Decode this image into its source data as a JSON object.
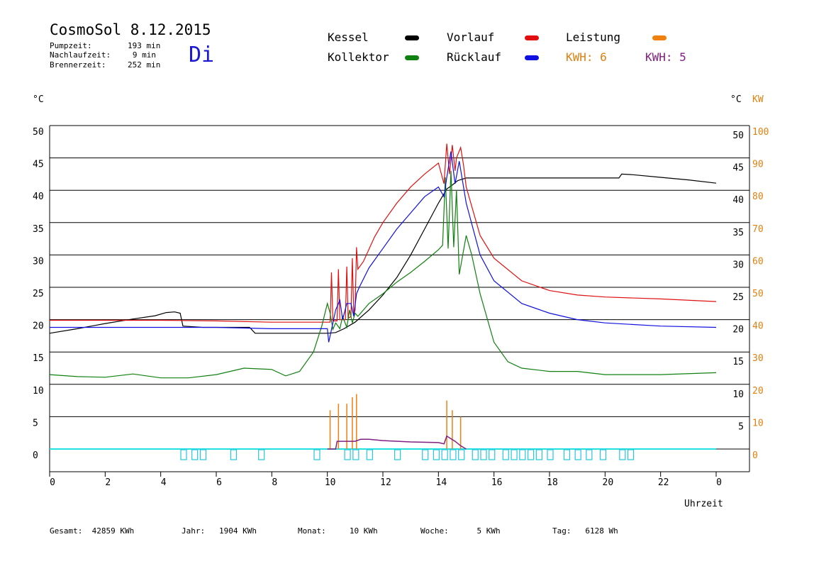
{
  "header": {
    "title": "CosmoSol 8.12.2015",
    "day": "Di",
    "stats": [
      {
        "label": "Pumpzeit:",
        "value": "193 min"
      },
      {
        "label": "Nachlaufzeit:",
        "value": "9 min"
      },
      {
        "label": "Brennerzeit:",
        "value": "252 min"
      }
    ]
  },
  "legend": {
    "kessel": {
      "label": "Kessel",
      "color": "#000000"
    },
    "vorlauf": {
      "label": "Vorlauf",
      "color": "#e01010"
    },
    "leistung": {
      "label": "Leistung",
      "color": "#f08010"
    },
    "kollektor": {
      "label": "Kollektor",
      "color": "#108010"
    },
    "ruecklauf": {
      "label": "Rücklauf",
      "color": "#1010e0"
    },
    "kwh_orange": {
      "label": "KWH: 6",
      "color": "#e08010"
    },
    "kwh_purple": {
      "label": "KWH: 5",
      "color": "#802080"
    }
  },
  "footer": {
    "gesamt": "Gesamt:  42859 KWh",
    "jahr": "Jahr:   1904 KWh",
    "monat": "Monat:     10 KWh",
    "woche": "Woche:      5 KWh",
    "tag": "Tag:   6128 Wh"
  },
  "chart_data": {
    "type": "line",
    "xlabel": "Uhrzeit",
    "ylabel_left": "°C",
    "ylabel_right": "°C",
    "ylabel_right2": "KW",
    "xlim": [
      0,
      24
    ],
    "ylim": [
      -3.5,
      55
    ],
    "x_ticks": [
      "0",
      "2",
      "4",
      "6",
      "8",
      "10",
      "12",
      "14",
      "16",
      "18",
      "20",
      "22",
      "0"
    ],
    "y_ticks_left": [
      "0",
      "5",
      "10",
      "15",
      "20",
      "25",
      "30",
      "35",
      "40",
      "45",
      "50"
    ],
    "y_ticks_right": [
      "5",
      "10",
      "15",
      "20",
      "25",
      "30",
      "35",
      "40",
      "45",
      "50"
    ],
    "y_ticks_kw": [
      "0",
      "10",
      "20",
      "30",
      "40",
      "50",
      "60",
      "70",
      "80",
      "90",
      "100"
    ],
    "kw_scale": 2,
    "series": [
      {
        "name": "Kessel",
        "color": "#000000",
        "points": [
          [
            0,
            17.9
          ],
          [
            1,
            18.6
          ],
          [
            2,
            19.4
          ],
          [
            3,
            20.1
          ],
          [
            3.8,
            20.6
          ],
          [
            4.2,
            21.1
          ],
          [
            4.5,
            21.2
          ],
          [
            4.7,
            21.0
          ],
          [
            4.8,
            19.0
          ],
          [
            5.5,
            18.8
          ],
          [
            7.2,
            18.8
          ],
          [
            7.4,
            17.9
          ],
          [
            9,
            17.9
          ],
          [
            10,
            17.9
          ],
          [
            10.3,
            18.0
          ],
          [
            10.6,
            18.6
          ],
          [
            11.0,
            19.6
          ],
          [
            11.5,
            21.5
          ],
          [
            12,
            23.8
          ],
          [
            12.5,
            26.5
          ],
          [
            13,
            30.0
          ],
          [
            13.5,
            34.0
          ],
          [
            14,
            38.0
          ],
          [
            14.3,
            40.2
          ],
          [
            14.5,
            40.8
          ],
          [
            14.7,
            41.5
          ],
          [
            15,
            41.9
          ],
          [
            17,
            41.9
          ],
          [
            20.5,
            41.9
          ],
          [
            20.6,
            42.5
          ],
          [
            21,
            42.4
          ],
          [
            22,
            42.0
          ],
          [
            23,
            41.6
          ],
          [
            24,
            41.1
          ]
        ]
      },
      {
        "name": "Vorlauf",
        "color": "#e01010",
        "points": [
          [
            0,
            19.9
          ],
          [
            2,
            19.9
          ],
          [
            4,
            19.9
          ],
          [
            6,
            19.8
          ],
          [
            8,
            19.6
          ],
          [
            10,
            19.6
          ],
          [
            10.1,
            19.6
          ],
          [
            10.15,
            27.3
          ],
          [
            10.2,
            19.8
          ],
          [
            10.35,
            19.8
          ],
          [
            10.4,
            27.8
          ],
          [
            10.45,
            20.0
          ],
          [
            10.65,
            20.0
          ],
          [
            10.7,
            28.2
          ],
          [
            10.75,
            20.2
          ],
          [
            10.85,
            20.5
          ],
          [
            10.9,
            29.5
          ],
          [
            10.95,
            20.8
          ],
          [
            11.0,
            21.5
          ],
          [
            11.05,
            31.2
          ],
          [
            11.1,
            27.8
          ],
          [
            11.3,
            29.0
          ],
          [
            11.7,
            32.8
          ],
          [
            12,
            35.0
          ],
          [
            12.5,
            38.0
          ],
          [
            13,
            40.5
          ],
          [
            13.5,
            42.5
          ],
          [
            14,
            44.2
          ],
          [
            14.2,
            41.0
          ],
          [
            14.3,
            47.2
          ],
          [
            14.4,
            42.5
          ],
          [
            14.5,
            47.0
          ],
          [
            14.6,
            43.0
          ],
          [
            14.65,
            45.0
          ],
          [
            14.8,
            46.6
          ],
          [
            14.9,
            44.0
          ],
          [
            15,
            40.5
          ],
          [
            15.5,
            33.0
          ],
          [
            16,
            29.5
          ],
          [
            17,
            26.0
          ],
          [
            18,
            24.5
          ],
          [
            19,
            23.8
          ],
          [
            20,
            23.5
          ],
          [
            22,
            23.2
          ],
          [
            24,
            22.8
          ]
        ]
      },
      {
        "name": "Kollektor",
        "color": "#108010",
        "points": [
          [
            0,
            11.5
          ],
          [
            1,
            11.2
          ],
          [
            2,
            11.1
          ],
          [
            3,
            11.6
          ],
          [
            4,
            11.0
          ],
          [
            5,
            11.0
          ],
          [
            6,
            11.5
          ],
          [
            7,
            12.5
          ],
          [
            8,
            12.3
          ],
          [
            8.5,
            11.3
          ],
          [
            9,
            12.0
          ],
          [
            9.5,
            15.0
          ],
          [
            9.8,
            19.0
          ],
          [
            10.0,
            22.5
          ],
          [
            10.1,
            21.0
          ],
          [
            10.2,
            18.5
          ],
          [
            10.3,
            19.5
          ],
          [
            10.45,
            18.6
          ],
          [
            10.55,
            20.5
          ],
          [
            10.7,
            18.8
          ],
          [
            10.8,
            21.5
          ],
          [
            10.9,
            19.5
          ],
          [
            11.0,
            21.0
          ],
          [
            11.1,
            20.5
          ],
          [
            11.3,
            21.5
          ],
          [
            11.5,
            22.5
          ],
          [
            12,
            24.0
          ],
          [
            12.5,
            25.8
          ],
          [
            13,
            27.3
          ],
          [
            13.5,
            29.0
          ],
          [
            14.0,
            30.8
          ],
          [
            14.15,
            31.5
          ],
          [
            14.25,
            42.0
          ],
          [
            14.35,
            31.0
          ],
          [
            14.45,
            43.0
          ],
          [
            14.55,
            31.2
          ],
          [
            14.65,
            40.0
          ],
          [
            14.75,
            27.0
          ],
          [
            15.0,
            33.0
          ],
          [
            15.2,
            30.0
          ],
          [
            15.5,
            24.0
          ],
          [
            16.0,
            16.5
          ],
          [
            16.5,
            13.5
          ],
          [
            17,
            12.5
          ],
          [
            18,
            12.0
          ],
          [
            19,
            12.0
          ],
          [
            20,
            11.5
          ],
          [
            22,
            11.5
          ],
          [
            24,
            11.8
          ]
        ]
      },
      {
        "name": "Rücklauf",
        "color": "#1010e0",
        "points": [
          [
            0,
            18.8
          ],
          [
            2,
            18.8
          ],
          [
            4,
            18.8
          ],
          [
            6,
            18.8
          ],
          [
            8,
            18.6
          ],
          [
            9,
            18.6
          ],
          [
            10,
            18.6
          ],
          [
            10.05,
            16.5
          ],
          [
            10.2,
            19.5
          ],
          [
            10.3,
            21.5
          ],
          [
            10.45,
            23.0
          ],
          [
            10.55,
            20.0
          ],
          [
            10.7,
            22.5
          ],
          [
            10.85,
            22.5
          ],
          [
            10.95,
            20.5
          ],
          [
            11.05,
            24.0
          ],
          [
            11.15,
            25.0
          ],
          [
            11.5,
            28.0
          ],
          [
            12,
            31.0
          ],
          [
            12.5,
            34.0
          ],
          [
            13,
            36.5
          ],
          [
            13.5,
            39.0
          ],
          [
            14,
            40.5
          ],
          [
            14.2,
            39.0
          ],
          [
            14.3,
            42.0
          ],
          [
            14.45,
            46.0
          ],
          [
            14.6,
            41.0
          ],
          [
            14.75,
            44.5
          ],
          [
            15,
            38.0
          ],
          [
            15.5,
            30.0
          ],
          [
            16,
            26.0
          ],
          [
            17,
            22.5
          ],
          [
            18,
            21.0
          ],
          [
            19,
            20.0
          ],
          [
            20,
            19.5
          ],
          [
            22,
            19.0
          ],
          [
            24,
            18.8
          ]
        ]
      }
    ],
    "leistung_bars": [
      [
        10.1,
        6
      ],
      [
        10.4,
        7
      ],
      [
        10.7,
        7
      ],
      [
        10.9,
        8
      ],
      [
        11.05,
        8.5
      ],
      [
        14.3,
        7.5
      ],
      [
        14.5,
        6
      ],
      [
        14.8,
        5
      ]
    ],
    "kwh_trace": [
      [
        10,
        0
      ],
      [
        10.3,
        0
      ],
      [
        10.35,
        1.2
      ],
      [
        11.0,
        1.2
      ],
      [
        11.2,
        1.5
      ],
      [
        11.5,
        1.5
      ],
      [
        12,
        1.3
      ],
      [
        13,
        1.1
      ],
      [
        14.0,
        1.0
      ],
      [
        14.2,
        0.8
      ],
      [
        14.3,
        2.0
      ],
      [
        14.6,
        1.2
      ],
      [
        14.8,
        0.5
      ],
      [
        15,
        0
      ]
    ],
    "pump_blocks": [
      4.8,
      5.2,
      5.5,
      6.6,
      7.6,
      9.6,
      10.7,
      11.0,
      11.5,
      12.5,
      13.5,
      13.9,
      14.2,
      14.5,
      14.8,
      15.3,
      15.6,
      15.9,
      16.4,
      16.7,
      17.0,
      17.3,
      17.6,
      18.0,
      18.6,
      19.0,
      19.4,
      19.9,
      20.6,
      20.9
    ]
  }
}
